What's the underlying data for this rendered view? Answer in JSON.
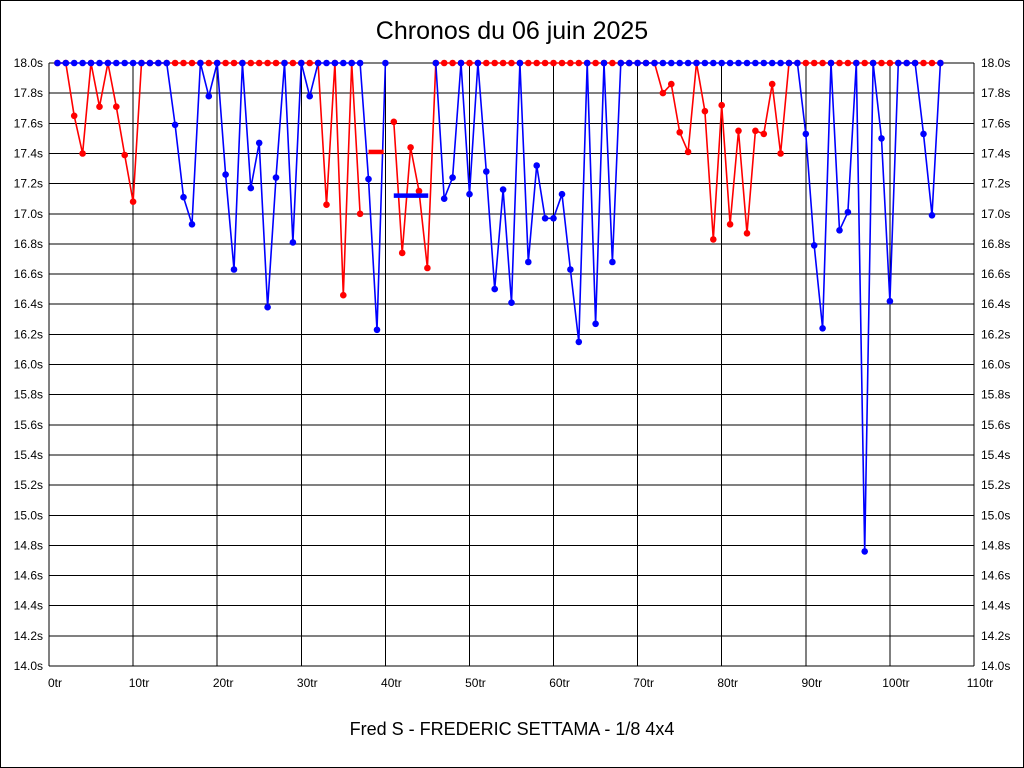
{
  "title": "Chronos du 06 juin 2025",
  "subtitle": "Fred S - FREDERIC SETTAMA - 1/8 4x4",
  "colors": {
    "series_red": "#ff0000",
    "series_blue": "#0000ff",
    "grid": "#000000",
    "background": "#ffffff",
    "text": "#000000"
  },
  "chart_data": {
    "type": "line",
    "title": "Chronos du 06 juin 2025",
    "subtitle": "Fred S - FREDERIC SETTAMA - 1/8 4x4",
    "x_unit": "tr",
    "y_unit": "s",
    "xlim": [
      0,
      110
    ],
    "ylim": [
      14.0,
      18.0
    ],
    "time_cap": 18.0,
    "grid": true,
    "legend": "none",
    "xticks": [
      0,
      10,
      20,
      30,
      40,
      50,
      60,
      70,
      80,
      90,
      100,
      110
    ],
    "xtick_labels": [
      "0tr",
      "10tr",
      "20tr",
      "30tr",
      "40tr",
      "50tr",
      "60tr",
      "70tr",
      "80tr",
      "90tr",
      "100tr",
      "110tr"
    ],
    "yticks": [
      14.0,
      14.2,
      14.4,
      14.6,
      14.8,
      15.0,
      15.2,
      15.4,
      15.6,
      15.8,
      16.0,
      16.2,
      16.4,
      16.6,
      16.8,
      17.0,
      17.2,
      17.4,
      17.6,
      17.8,
      18.0
    ],
    "ytick_labels": [
      "14.0s",
      "14.2s",
      "14.4s",
      "14.6s",
      "14.8s",
      "15.0s",
      "15.2s",
      "15.4s",
      "15.6s",
      "15.8s",
      "16.0s",
      "16.2s",
      "16.4s",
      "16.6s",
      "16.8s",
      "17.0s",
      "17.2s",
      "17.4s",
      "17.6s",
      "17.8s",
      "18.0s"
    ],
    "series": [
      {
        "name": "red",
        "color": "#ff0000",
        "points": [
          [
            1,
            18
          ],
          [
            2,
            18
          ],
          [
            3,
            17.65
          ],
          [
            4,
            17.4
          ],
          [
            5,
            18
          ],
          [
            6,
            17.71
          ],
          [
            7,
            18
          ],
          [
            8,
            17.71
          ],
          [
            9,
            17.39
          ],
          [
            10,
            17.08
          ],
          [
            11,
            18
          ],
          [
            12,
            18
          ],
          [
            13,
            18
          ],
          [
            14,
            18
          ],
          [
            15,
            18
          ],
          [
            16,
            18
          ],
          [
            17,
            18
          ],
          [
            18,
            18
          ],
          [
            19,
            18
          ],
          [
            20,
            18
          ],
          [
            21,
            18
          ],
          [
            22,
            18
          ],
          [
            23,
            18
          ],
          [
            24,
            18
          ],
          [
            25,
            18
          ],
          [
            26,
            18
          ],
          [
            27,
            18
          ],
          [
            28,
            18
          ],
          [
            29,
            18
          ],
          [
            30,
            18
          ],
          [
            31,
            18
          ],
          [
            32,
            18
          ],
          [
            33,
            17.06
          ],
          [
            34,
            18
          ],
          [
            35,
            16.46
          ],
          [
            36,
            18
          ],
          [
            37,
            17.0
          ],
          [
            41,
            17.61
          ],
          [
            42,
            16.74
          ],
          [
            43,
            17.44
          ],
          [
            44,
            17.15
          ],
          [
            45,
            16.64
          ],
          [
            46,
            18
          ],
          [
            47,
            18
          ],
          [
            48,
            18
          ],
          [
            49,
            18
          ],
          [
            50,
            18
          ],
          [
            51,
            18
          ],
          [
            52,
            18
          ],
          [
            53,
            18
          ],
          [
            54,
            18
          ],
          [
            55,
            18
          ],
          [
            56,
            18
          ],
          [
            57,
            18
          ],
          [
            58,
            18
          ],
          [
            59,
            18
          ],
          [
            60,
            18
          ],
          [
            61,
            18
          ],
          [
            62,
            18
          ],
          [
            63,
            18
          ],
          [
            64,
            18
          ],
          [
            65,
            18
          ],
          [
            66,
            18
          ],
          [
            67,
            18
          ],
          [
            68,
            18
          ],
          [
            69,
            18
          ],
          [
            70,
            18
          ],
          [
            71,
            18
          ],
          [
            72,
            18
          ],
          [
            73,
            17.8
          ],
          [
            74,
            17.86
          ],
          [
            75,
            17.54
          ],
          [
            76,
            17.41
          ],
          [
            77,
            18
          ],
          [
            78,
            17.68
          ],
          [
            79,
            16.83
          ],
          [
            80,
            17.72
          ],
          [
            81,
            16.93
          ],
          [
            82,
            17.55
          ],
          [
            83,
            16.87
          ],
          [
            84,
            17.55
          ],
          [
            85,
            17.53
          ],
          [
            86,
            17.86
          ],
          [
            87,
            17.4
          ],
          [
            88,
            18
          ],
          [
            89,
            18
          ],
          [
            90,
            18
          ],
          [
            91,
            18
          ],
          [
            92,
            18
          ],
          [
            93,
            18
          ],
          [
            94,
            18
          ],
          [
            95,
            18
          ],
          [
            96,
            18
          ],
          [
            97,
            18
          ],
          [
            98,
            18
          ],
          [
            99,
            18
          ],
          [
            100,
            18
          ],
          [
            101,
            18
          ],
          [
            102,
            18
          ],
          [
            103,
            18
          ],
          [
            104,
            18
          ],
          [
            105,
            18
          ],
          [
            106,
            18
          ]
        ]
      },
      {
        "name": "blue",
        "color": "#0000ff",
        "points": [
          [
            1,
            18
          ],
          [
            2,
            18
          ],
          [
            3,
            18
          ],
          [
            4,
            18
          ],
          [
            5,
            18
          ],
          [
            6,
            18
          ],
          [
            7,
            18
          ],
          [
            8,
            18
          ],
          [
            9,
            18
          ],
          [
            10,
            18
          ],
          [
            11,
            18
          ],
          [
            12,
            18
          ],
          [
            13,
            18
          ],
          [
            14,
            18
          ],
          [
            15,
            17.59
          ],
          [
            16,
            17.11
          ],
          [
            17,
            16.93
          ],
          [
            18,
            18
          ],
          [
            19,
            17.78
          ],
          [
            20,
            18
          ],
          [
            21,
            17.26
          ],
          [
            22,
            16.63
          ],
          [
            23,
            18
          ],
          [
            24,
            17.17
          ],
          [
            25,
            17.47
          ],
          [
            26,
            16.38
          ],
          [
            27,
            17.24
          ],
          [
            28,
            18
          ],
          [
            29,
            16.81
          ],
          [
            30,
            18
          ],
          [
            31,
            17.78
          ],
          [
            32,
            18
          ],
          [
            33,
            18
          ],
          [
            34,
            18
          ],
          [
            35,
            18
          ],
          [
            36,
            18
          ],
          [
            37,
            18
          ],
          [
            38,
            17.23
          ],
          [
            39,
            16.23
          ],
          [
            40,
            18
          ],
          [
            46,
            18
          ],
          [
            47,
            17.1
          ],
          [
            48,
            17.24
          ],
          [
            49,
            18
          ],
          [
            50,
            17.13
          ],
          [
            51,
            18
          ],
          [
            52,
            17.28
          ],
          [
            53,
            16.5
          ],
          [
            54,
            17.16
          ],
          [
            55,
            16.41
          ],
          [
            56,
            18
          ],
          [
            57,
            16.68
          ],
          [
            58,
            17.32
          ],
          [
            59,
            16.97
          ],
          [
            60,
            16.97
          ],
          [
            61,
            17.13
          ],
          [
            62,
            16.63
          ],
          [
            63,
            16.15
          ],
          [
            64,
            18
          ],
          [
            65,
            16.27
          ],
          [
            66,
            18
          ],
          [
            67,
            16.68
          ],
          [
            68,
            18
          ],
          [
            69,
            18
          ],
          [
            70,
            18
          ],
          [
            71,
            18
          ],
          [
            72,
            18
          ],
          [
            73,
            18
          ],
          [
            74,
            18
          ],
          [
            75,
            18
          ],
          [
            76,
            18
          ],
          [
            77,
            18
          ],
          [
            78,
            18
          ],
          [
            79,
            18
          ],
          [
            80,
            18
          ],
          [
            81,
            18
          ],
          [
            82,
            18
          ],
          [
            83,
            18
          ],
          [
            84,
            18
          ],
          [
            85,
            18
          ],
          [
            86,
            18
          ],
          [
            87,
            18
          ],
          [
            88,
            18
          ],
          [
            89,
            18
          ],
          [
            90,
            17.53
          ],
          [
            91,
            16.79
          ],
          [
            92,
            16.24
          ],
          [
            93,
            18
          ],
          [
            94,
            16.89
          ],
          [
            95,
            17.01
          ],
          [
            96,
            18
          ],
          [
            97,
            14.76
          ],
          [
            98,
            18
          ],
          [
            99,
            17.5
          ],
          [
            100,
            16.42
          ],
          [
            101,
            18
          ],
          [
            102,
            18
          ],
          [
            103,
            18
          ],
          [
            104,
            17.53
          ],
          [
            105,
            16.99
          ],
          [
            106,
            18
          ]
        ]
      }
    ],
    "gap_markers": [
      {
        "series": "red",
        "from_lap": 38.0,
        "to_lap": 39.8,
        "time": 17.41,
        "color": "#ff0000"
      },
      {
        "series": "blue",
        "from_lap": 41.0,
        "to_lap": 45.1,
        "time": 17.12,
        "color": "#0000ff"
      }
    ]
  }
}
